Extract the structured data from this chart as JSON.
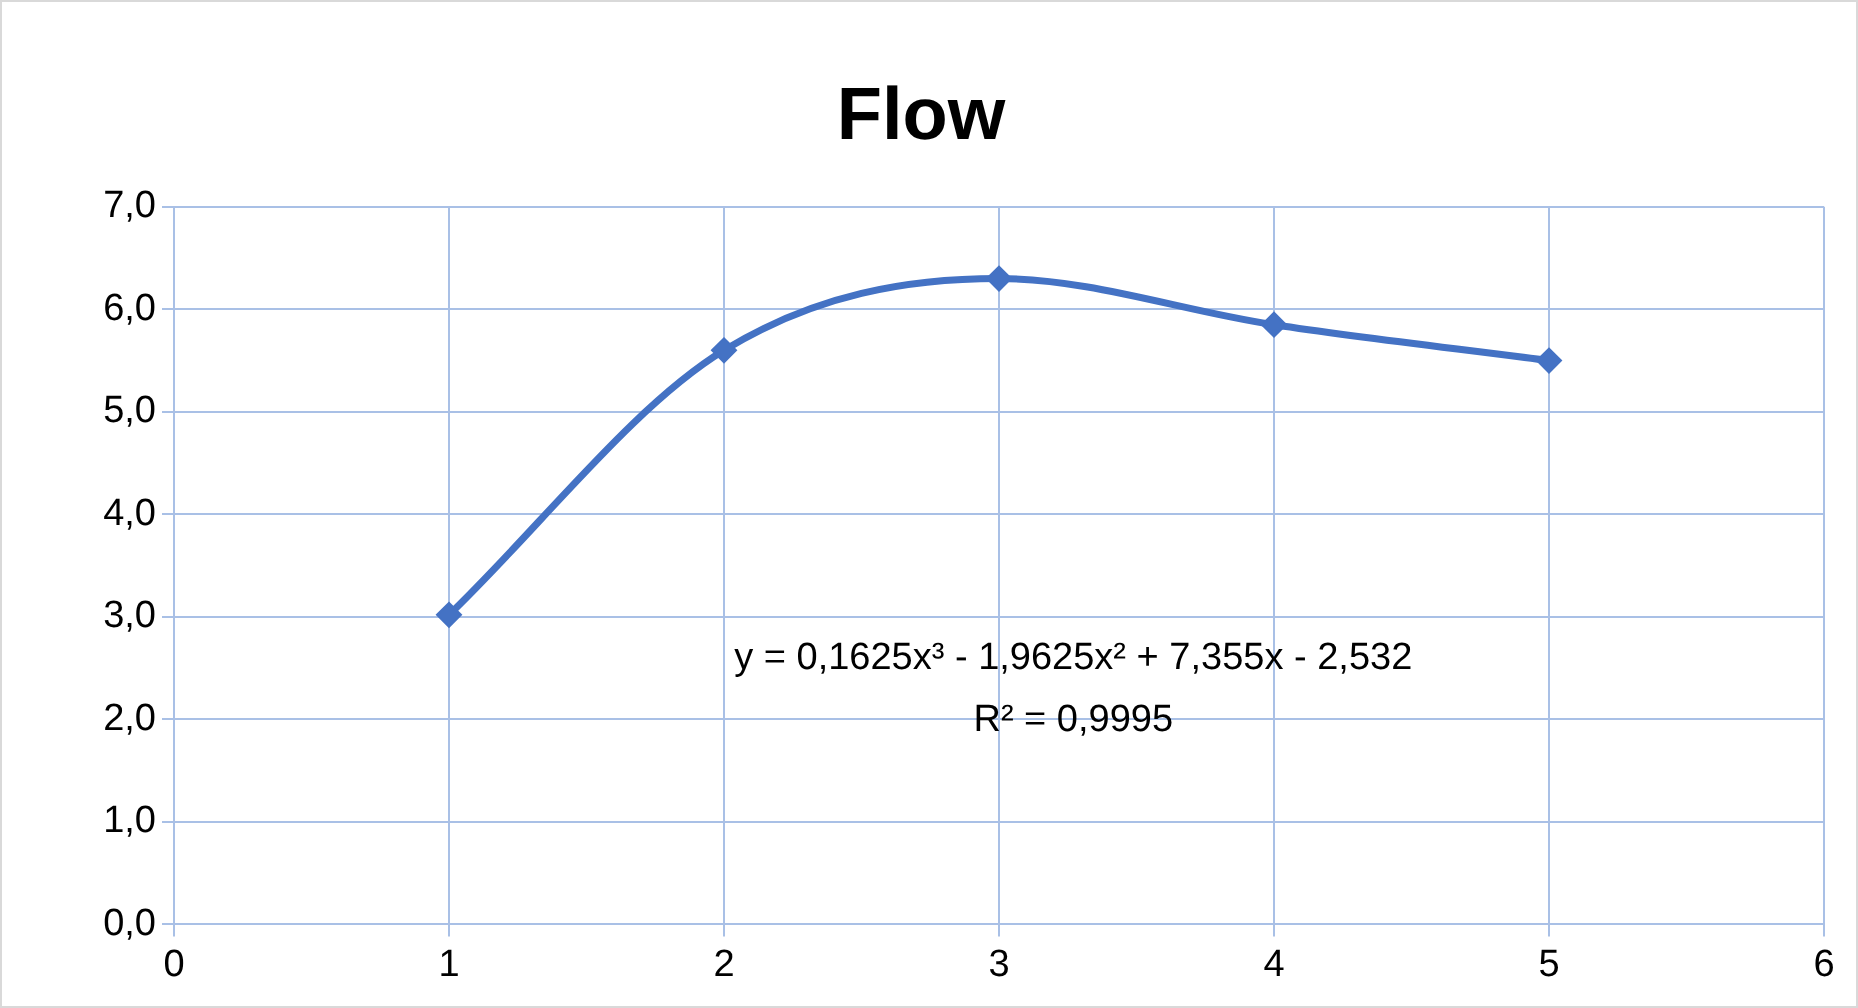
{
  "chart_data": {
    "type": "line",
    "title": "Flow",
    "x": [
      1,
      2,
      3,
      4,
      5
    ],
    "series": [
      {
        "color": "#4472c4",
        "values": [
          3.02,
          5.6,
          6.3,
          5.85,
          5.5
        ]
      }
    ],
    "xlim": [
      0,
      6
    ],
    "xticks": [
      0,
      1,
      2,
      3,
      4,
      5,
      6
    ],
    "ylim": [
      0,
      7
    ],
    "yticks": [
      {
        "value": 0,
        "label": "0,0"
      },
      {
        "value": 1,
        "label": "1,0"
      },
      {
        "value": 2,
        "label": "2,0"
      },
      {
        "value": 3,
        "label": "3,0"
      },
      {
        "value": 4,
        "label": "4,0"
      },
      {
        "value": 5,
        "label": "5,0"
      },
      {
        "value": 6,
        "label": "6,0"
      },
      {
        "value": 7,
        "label": "7,0"
      }
    ],
    "annotations": [
      "y = 0,1625x³ - 1,9625x² + 7,355x - 2,532",
      "R² = 0,9995"
    ],
    "grid": true,
    "legend": false,
    "marker": "diamond",
    "line_style": "solid"
  }
}
